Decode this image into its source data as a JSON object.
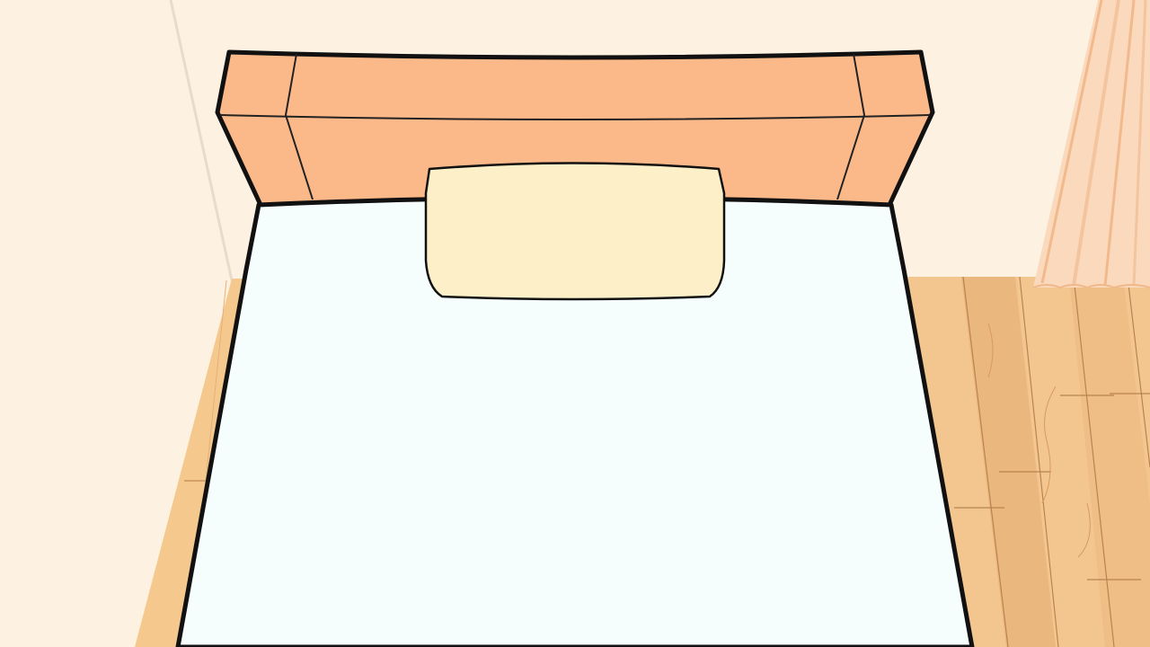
{
  "scene": {
    "name": "bedroom-bed-topdown",
    "colors": {
      "wall": "#fdf2e2",
      "wall_edge": "#e8dccb",
      "floor": "#f5c98e",
      "floor_dark": "#e3ad70",
      "floor_line": "#b47a44",
      "headboard": "#fbb98a",
      "headboard_line": "#222222",
      "mattress": "#f6fdfd",
      "pillow": "#fdf0c8",
      "curtain": "#fad7b8",
      "curtain_fold": "#f2bd93",
      "outline": "#111111"
    }
  }
}
